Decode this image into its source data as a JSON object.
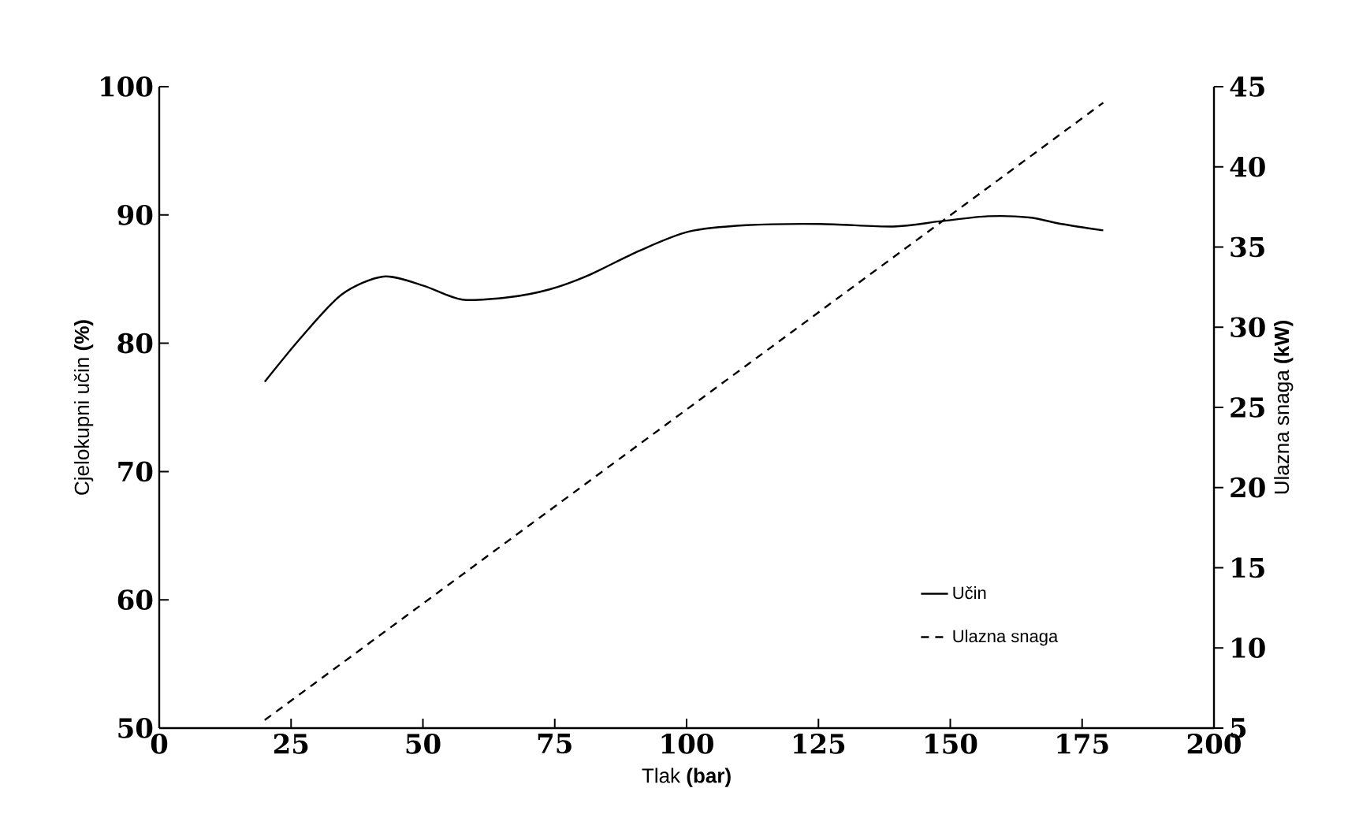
{
  "chart_data": {
    "type": "line",
    "xlabel": "Tlak **(bar)**",
    "ylabel": "Cjelokupni učin **(%)**",
    "y2label": "Ulazna snaga **(kW)**",
    "xlim": [
      0,
      200
    ],
    "xticks": [
      0,
      25,
      50,
      75,
      100,
      125,
      150,
      175,
      200
    ],
    "ylim": [
      50,
      100
    ],
    "yticks": [
      50,
      60,
      70,
      80,
      90,
      100
    ],
    "y2lim": [
      5,
      45
    ],
    "y2ticks": [
      5,
      10,
      15,
      20,
      25,
      30,
      35,
      40,
      45
    ],
    "legend": "bottom right",
    "grid": false,
    "series": [
      {
        "name": "Učin",
        "color": "#000000",
        "line_style": "solid",
        "x": [
          20,
          27,
          34.6,
          42.5,
          50,
          57.5,
          66.5,
          74,
          81.4,
          91,
          100.4,
          111.3,
          125.3,
          139.2,
          148,
          157.2,
          165,
          171.1,
          179
        ],
        "values": [
          77,
          80.5,
          83.8,
          85.2,
          84.5,
          83.4,
          83.6,
          84.2,
          85.3,
          87.2,
          88.7,
          89.2,
          89.3,
          89.1,
          89.5,
          89.9,
          89.8,
          89.3,
          88.8
        ]
      },
      {
        "name": "Ulazna snaga",
        "color": "#000000",
        "line_style": "dashed",
        "axis": "y2",
        "x": [
          20,
          179
        ],
        "values": [
          5.5,
          44
        ]
      }
    ]
  }
}
